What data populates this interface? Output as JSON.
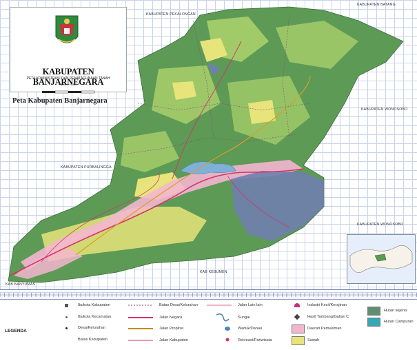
{
  "title_box": {
    "title": "KABUPATEN BANJARNEGARA",
    "subtitle": "PETA ADMINISTRASI DAN PENATAGUNAAN TANAH",
    "scale_label": "Skala 1 : 25.000"
  },
  "map_title": "Peta Kabupaten Banjarnegara",
  "regions": {
    "north": "KABUPATEN PEKALONGAN",
    "northeast": "KABUPATEN BATANG",
    "east": "KABUPATEN WONOSOBO",
    "southeast": "KABUPATEN WONOSOBO",
    "west": "KABUPATEN PURBALINGGA",
    "south": "KAB KEBUMEN",
    "southwest": "KAB BANYUMAS"
  },
  "legend": {
    "heading": "LEGENDA",
    "col1": [
      "Ibukota Kabupaten",
      "Ibukota Kecamatan",
      "Desa/Kelurahan",
      "Batas Kabupaten"
    ],
    "col2": [
      "Batas Desa/Kelurahan",
      "Jalan Negara",
      "Jalan Propinsi",
      "Jalan Kabupaten"
    ],
    "col3": [
      "Jalan Lain lain",
      "Sungai",
      "Waduk/Danau",
      "Rekreasi/Pariwisata"
    ],
    "col4": [
      "Industri Kecil/Kerajinan",
      "Hasil Tambang/Galian C",
      "Daerah Pemukiman",
      "Sawah"
    ],
    "col5": [
      "Hutan sejenis",
      "Hutan Campuran"
    ]
  },
  "colors": {
    "forest_green": "#5d9a55",
    "light_green": "#a9cf6c",
    "dry_yellow": "#e6e47a",
    "settlement_pink": "#f3b6cf",
    "mixed_forest_blue": "#6f7fae",
    "lake": "#7fb0d8",
    "road_red": "#d6336c",
    "road_yellow": "#d7a02a",
    "hutan_sejenis": "#5f8f72",
    "hutan_campuran": "#36a7b5"
  }
}
